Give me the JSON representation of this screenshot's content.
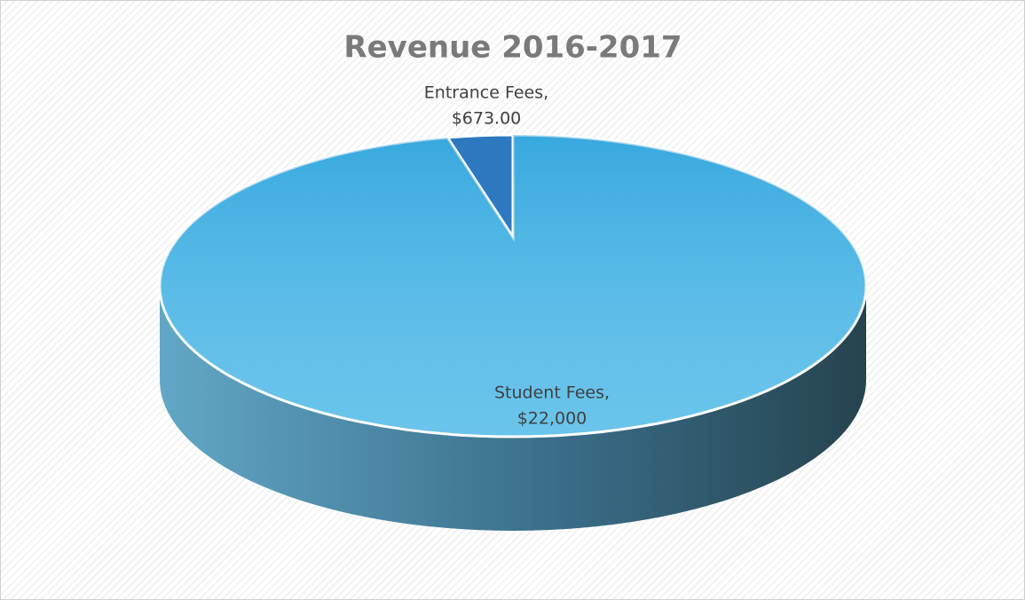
{
  "chart_data": {
    "type": "pie",
    "title": "Revenue 2016-2017",
    "categories": [
      "Entrance Fees,",
      "Student Fees,"
    ],
    "values": [
      673,
      22000
    ],
    "value_labels": [
      "$673.00",
      "$22,000"
    ],
    "colors": [
      "#2e78c0",
      "#45b6e6"
    ]
  }
}
